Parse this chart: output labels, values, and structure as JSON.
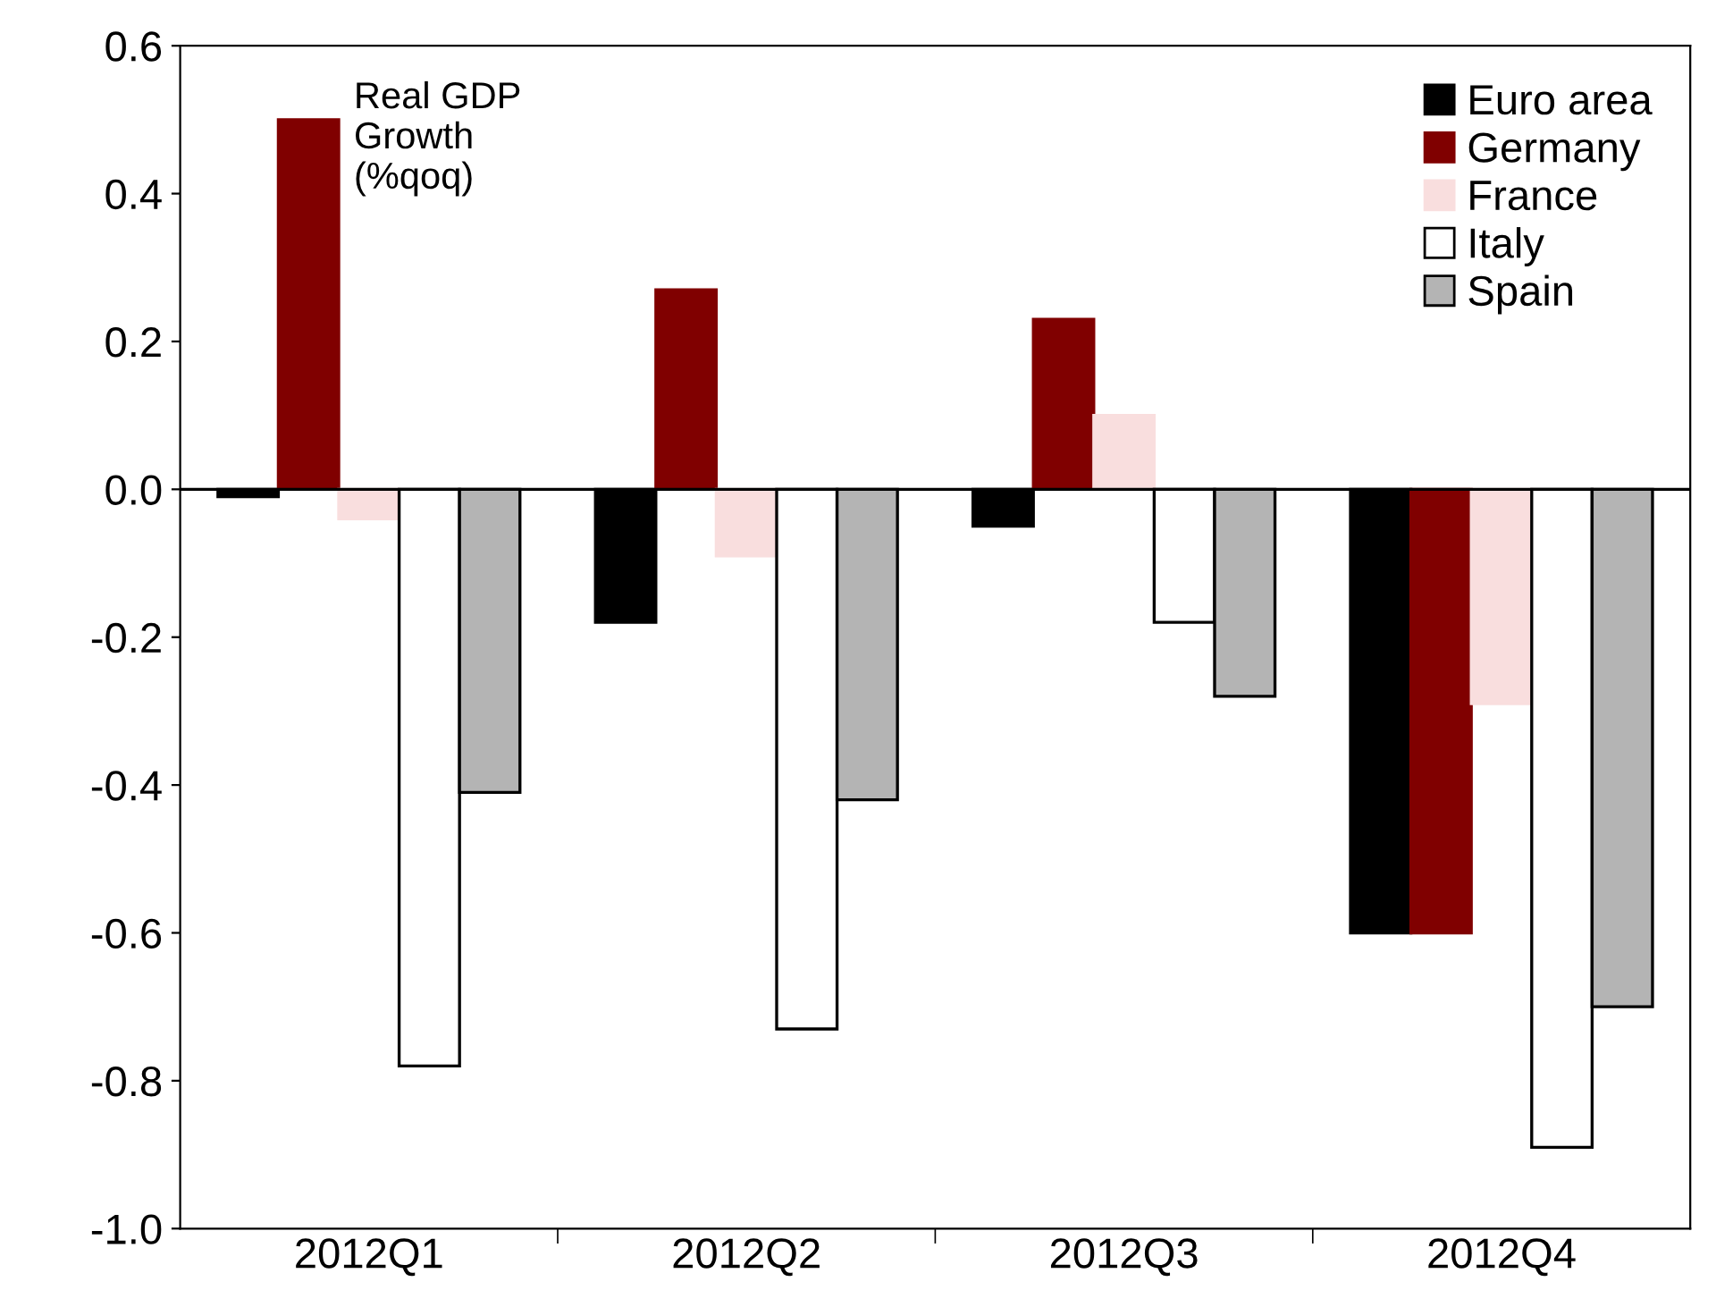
{
  "chart_data": {
    "type": "bar",
    "categories": [
      "2012Q1",
      "2012Q2",
      "2012Q3",
      "2012Q4"
    ],
    "series": [
      {
        "name": "Euro area",
        "color": "#000000",
        "values": [
          -0.01,
          -0.18,
          -0.05,
          -0.6
        ]
      },
      {
        "name": "Germany",
        "color": "#800000",
        "values": [
          0.5,
          0.27,
          0.23,
          -0.6
        ]
      },
      {
        "name": "France",
        "color": "#f9dede",
        "values": [
          -0.04,
          -0.09,
          0.1,
          -0.29
        ]
      },
      {
        "name": "Italy",
        "color": "#ffffff",
        "values": [
          -0.78,
          -0.73,
          -0.18,
          -0.89
        ]
      },
      {
        "name": "Spain",
        "color": "#b4b4b4",
        "values": [
          -0.41,
          -0.42,
          -0.28,
          -0.7
        ]
      }
    ],
    "ylim": [
      -1.0,
      0.6
    ],
    "yticks": [
      {
        "value": -1.0,
        "label": "-1.0"
      },
      {
        "value": -0.8,
        "label": "-0.8"
      },
      {
        "value": -0.6,
        "label": "-0.6"
      },
      {
        "value": -0.4,
        "label": "-0.4"
      },
      {
        "value": -0.2,
        "label": "-0.2"
      },
      {
        "value": 0.0,
        "label": "0.0"
      },
      {
        "value": 0.2,
        "label": "0.2"
      },
      {
        "value": 0.4,
        "label": "0.4"
      },
      {
        "value": 0.6,
        "label": "0.6"
      }
    ],
    "annotations": [
      "Real GDP\nGrowth\n(%qoq)"
    ],
    "legend": "top right"
  }
}
